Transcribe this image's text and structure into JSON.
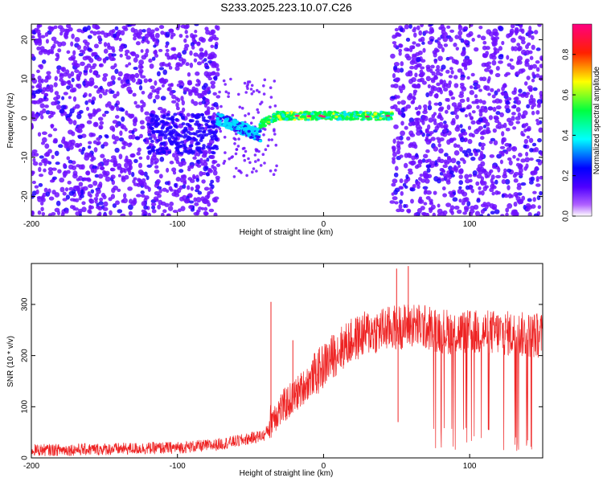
{
  "title": "S233.2025.223.10.07.C26",
  "chart_data": [
    {
      "type": "heatmap",
      "xlabel": "Height of straight line (km)",
      "ylabel": "Frequency (Hz)",
      "xlim": [
        -200,
        150
      ],
      "ylim": [
        -25,
        24
      ],
      "xticks": [
        -200,
        -100,
        0,
        100
      ],
      "yticks": [
        20,
        10,
        0,
        -10,
        -20
      ],
      "colorbar": {
        "label": "Normalized spectral amplitude",
        "range": [
          0.0,
          0.95
        ],
        "ticks": [
          0.0,
          0.2,
          0.4,
          0.6,
          0.8
        ],
        "colormap": [
          "#ffffff",
          "#a000ff",
          "#0000ff",
          "#00ffff",
          "#00ff00",
          "#ffff00",
          "#ff0000",
          "#ff0080"
        ]
      },
      "regions": [
        {
          "x": [
            -200,
            -73
          ],
          "description_level": 0.08
        },
        {
          "x": [
            -73,
            -45
          ],
          "freq_center": -3,
          "level": 0.35
        },
        {
          "x": [
            -45,
            47
          ],
          "freq_center": 0.6,
          "level": 0.7
        },
        {
          "x": [
            47,
            150
          ],
          "description_level": 0.08
        }
      ],
      "colors": {
        "noise": "#8800ee",
        "band": "#00ff80"
      }
    },
    {
      "type": "line",
      "xlabel": "Height of straight line (km)",
      "ylabel": "SNR (10 * v/v)",
      "xlim": [
        -200,
        150
      ],
      "ylim": [
        0,
        380
      ],
      "xticks": [
        -200,
        -100,
        0,
        100
      ],
      "yticks": [
        0,
        100,
        200,
        300
      ],
      "series": [
        {
          "color": "#ee2222",
          "x": [
            -200,
            -150,
            -100,
            -75,
            -55,
            -40,
            -35,
            -20,
            -10,
            0,
            10,
            20,
            30,
            40,
            50,
            60,
            70,
            80,
            90,
            100,
            110,
            120,
            130,
            140,
            150
          ],
          "values": [
            15,
            17,
            20,
            25,
            35,
            45,
            80,
            120,
            150,
            180,
            210,
            230,
            245,
            250,
            255,
            260,
            255,
            250,
            245,
            245,
            245,
            245,
            242,
            240,
            240
          ],
          "spikes": [
            {
              "x": -36,
              "value": 305
            },
            {
              "x": -21,
              "value": 230
            },
            {
              "x": 50,
              "value": 370
            },
            {
              "x": 58,
              "value": 375
            },
            {
              "x": 51,
              "value": 70
            }
          ],
          "dropouts_x_range": [
            74,
            145
          ],
          "dropout_min": 10
        }
      ]
    }
  ]
}
